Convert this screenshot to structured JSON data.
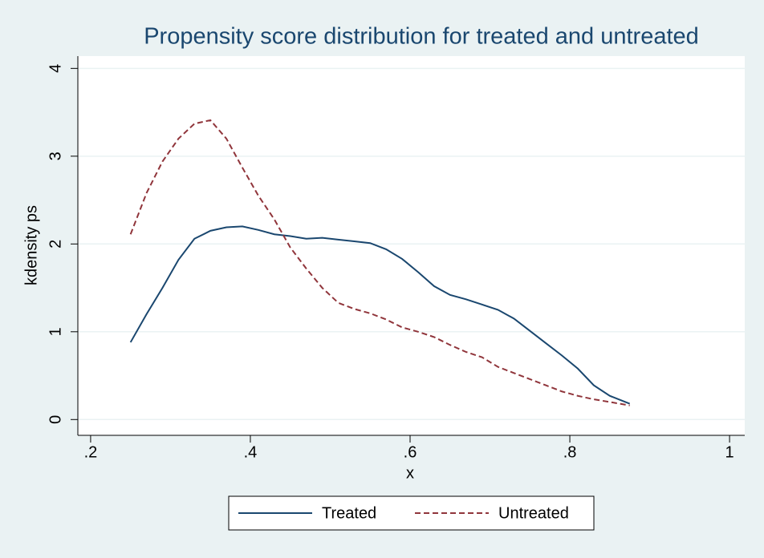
{
  "chart_data": {
    "type": "line",
    "title": "Propensity score distribution for treated and untreated",
    "x_label": "x",
    "y_label": "kdensity ps",
    "x": [
      0.25,
      0.27,
      0.29,
      0.31,
      0.33,
      0.35,
      0.37,
      0.39,
      0.41,
      0.43,
      0.45,
      0.47,
      0.49,
      0.51,
      0.53,
      0.55,
      0.57,
      0.59,
      0.61,
      0.63,
      0.65,
      0.67,
      0.69,
      0.71,
      0.73,
      0.75,
      0.77,
      0.79,
      0.81,
      0.83,
      0.85,
      0.875
    ],
    "series": [
      {
        "name": "Treated",
        "color": "#1a476f",
        "dash": false,
        "values": [
          0.88,
          1.2,
          1.5,
          1.82,
          2.06,
          2.15,
          2.19,
          2.2,
          2.16,
          2.11,
          2.09,
          2.06,
          2.07,
          2.05,
          2.03,
          2.01,
          1.94,
          1.83,
          1.68,
          1.52,
          1.42,
          1.37,
          1.31,
          1.25,
          1.15,
          1.01,
          0.87,
          0.73,
          0.58,
          0.39,
          0.27,
          0.18
        ]
      },
      {
        "name": "Untreated",
        "color": "#90353b",
        "dash": true,
        "values": [
          2.11,
          2.58,
          2.94,
          3.2,
          3.37,
          3.41,
          3.2,
          2.87,
          2.55,
          2.28,
          1.96,
          1.72,
          1.5,
          1.33,
          1.26,
          1.21,
          1.14,
          1.05,
          1.0,
          0.94,
          0.85,
          0.77,
          0.71,
          0.6,
          0.53,
          0.46,
          0.39,
          0.32,
          0.27,
          0.23,
          0.2,
          0.16
        ]
      }
    ],
    "xlim": [
      0.184,
      1.019
    ],
    "ylim": [
      -0.18,
      4.14
    ],
    "xticks": [
      {
        "value": 0.2,
        "label": ".2"
      },
      {
        "value": 0.4,
        "label": ".4"
      },
      {
        "value": 0.6,
        "label": ".6"
      },
      {
        "value": 0.8,
        "label": ".8"
      },
      1
    ],
    "yticks": [
      0,
      1,
      2,
      3,
      4
    ],
    "grid": true,
    "legend": "bottom"
  }
}
